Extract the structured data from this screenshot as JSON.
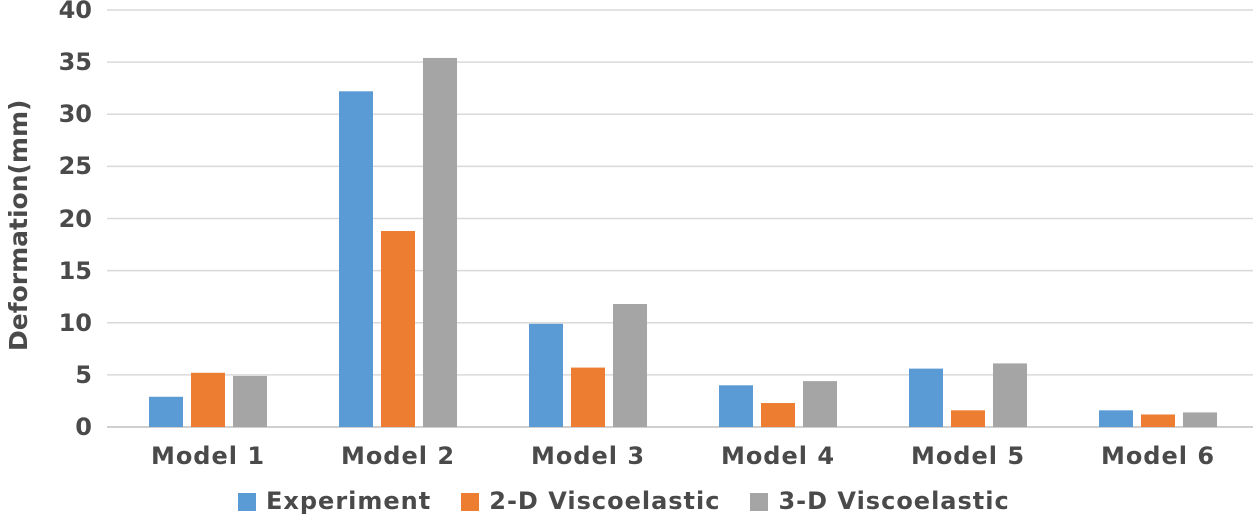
{
  "chart_data": {
    "type": "bar",
    "categories": [
      "Model 1",
      "Model 2",
      "Model 3",
      "Model 4",
      "Model 5",
      "Model 6"
    ],
    "series": [
      {
        "name": "Experiment",
        "color": "#5B9BD5",
        "values": [
          2.9,
          32.2,
          9.9,
          4.0,
          5.6,
          1.6
        ]
      },
      {
        "name": "2-D Viscoelastic",
        "color": "#ED7D31",
        "values": [
          5.2,
          18.8,
          5.7,
          2.3,
          1.6,
          1.2
        ]
      },
      {
        "name": "3-D Viscoelastic",
        "color": "#A5A5A5",
        "values": [
          4.9,
          35.4,
          11.8,
          4.4,
          6.1,
          1.4
        ]
      }
    ],
    "xlabel": "",
    "ylabel": "Deformation(mm)",
    "ylim": [
      0,
      40
    ],
    "yticks": [
      0,
      5,
      10,
      15,
      20,
      25,
      30,
      35,
      40
    ],
    "grid": true,
    "legend_position": "bottom",
    "colors": {
      "grid": "#D9D9D9",
      "axis": "#BFBFBF",
      "text": "#4A4A4A"
    }
  }
}
